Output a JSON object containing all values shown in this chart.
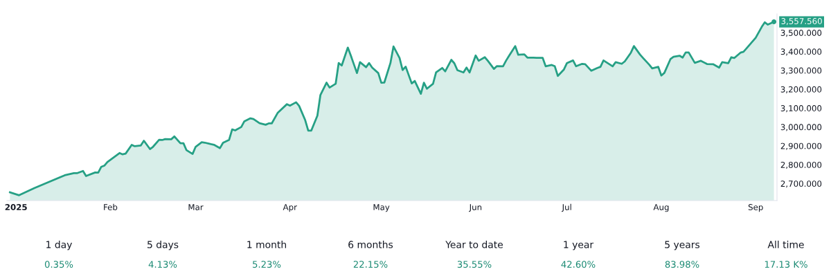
{
  "chart_data": [
    {
      "type": "area",
      "x": [
        "2024-12-30",
        "2025-01-02",
        "2025-01-07",
        "2025-01-17",
        "2025-01-20",
        "2025-01-21",
        "2025-01-23",
        "2025-01-24",
        "2025-01-27",
        "2025-01-28",
        "2025-01-29",
        "2025-01-30",
        "2025-01-31",
        "2025-02-04",
        "2025-02-05",
        "2025-02-06",
        "2025-02-08",
        "2025-02-09",
        "2025-02-11",
        "2025-02-12",
        "2025-02-14",
        "2025-02-15",
        "2025-02-17",
        "2025-02-18",
        "2025-02-19",
        "2025-02-21",
        "2025-02-22",
        "2025-02-24",
        "2025-02-25",
        "2025-02-26",
        "2025-02-28",
        "2025-03-01",
        "2025-03-03",
        "2025-03-04",
        "2025-03-06",
        "2025-03-07",
        "2025-03-09",
        "2025-03-10",
        "2025-03-12",
        "2025-03-13",
        "2025-03-14",
        "2025-03-16",
        "2025-03-17",
        "2025-03-19",
        "2025-03-20",
        "2025-03-22",
        "2025-03-24",
        "2025-03-25",
        "2025-03-26",
        "2025-03-28",
        "2025-03-31",
        "2025-04-01",
        "2025-04-03",
        "2025-04-04",
        "2025-04-06",
        "2025-04-07",
        "2025-04-08",
        "2025-04-10",
        "2025-04-11",
        "2025-04-13",
        "2025-04-14",
        "2025-04-16",
        "2025-04-17",
        "2025-04-18",
        "2025-04-20",
        "2025-04-21",
        "2025-04-23",
        "2025-04-24",
        "2025-04-26",
        "2025-04-27",
        "2025-04-28",
        "2025-04-30",
        "2025-05-01",
        "2025-05-02",
        "2025-05-04",
        "2025-05-05",
        "2025-05-07",
        "2025-05-08",
        "2025-05-09",
        "2025-05-11",
        "2025-05-12",
        "2025-05-14",
        "2025-05-15",
        "2025-05-16",
        "2025-05-18",
        "2025-05-19",
        "2025-05-21",
        "2025-05-22",
        "2025-05-24",
        "2025-05-25",
        "2025-05-26",
        "2025-05-28",
        "2025-05-29",
        "2025-05-30",
        "2025-06-01",
        "2025-06-02",
        "2025-06-04",
        "2025-06-05",
        "2025-06-07",
        "2025-06-08",
        "2025-06-10",
        "2025-06-11",
        "2025-06-12",
        "2025-06-14",
        "2025-06-15",
        "2025-06-17",
        "2025-06-18",
        "2025-06-20",
        "2025-06-21",
        "2025-06-23",
        "2025-06-24",
        "2025-06-26",
        "2025-06-27",
        "2025-06-28",
        "2025-06-30",
        "2025-07-01",
        "2025-07-03",
        "2025-07-04",
        "2025-07-06",
        "2025-07-07",
        "2025-07-09",
        "2025-07-11",
        "2025-07-12",
        "2025-07-13",
        "2025-07-16",
        "2025-07-17",
        "2025-07-19",
        "2025-07-20",
        "2025-07-22",
        "2025-07-23",
        "2025-07-25",
        "2025-07-26",
        "2025-07-28",
        "2025-07-29",
        "2025-07-31",
        "2025-08-01",
        "2025-08-02",
        "2025-08-04",
        "2025-08-05",
        "2025-08-07",
        "2025-08-08",
        "2025-08-09",
        "2025-08-10",
        "2025-08-12",
        "2025-08-14",
        "2025-08-16",
        "2025-08-18",
        "2025-08-20",
        "2025-08-21",
        "2025-08-23",
        "2025-08-24",
        "2025-08-25",
        "2025-08-27",
        "2025-08-28",
        "2025-08-29",
        "2025-09-01",
        "2025-09-03",
        "2025-09-04",
        "2025-09-05",
        "2025-09-07"
      ],
      "series": [
        {
          "color": "#26a085",
          "values": [
            2654,
            2638,
            2676,
            2744,
            2755,
            2755,
            2767,
            2740,
            2759,
            2758,
            2789,
            2795,
            2814,
            2862,
            2855,
            2859,
            2905,
            2898,
            2902,
            2927,
            2883,
            2895,
            2932,
            2931,
            2936,
            2935,
            2950,
            2914,
            2914,
            2877,
            2857,
            2895,
            2919,
            2917,
            2909,
            2906,
            2888,
            2916,
            2932,
            2987,
            2982,
            3000,
            3030,
            3046,
            3042,
            3020,
            3012,
            3019,
            3019,
            3076,
            3121,
            3113,
            3131,
            3112,
            3036,
            2981,
            2981,
            3060,
            3170,
            3235,
            3209,
            3229,
            3339,
            3326,
            3421,
            3378,
            3286,
            3344,
            3317,
            3339,
            3315,
            3286,
            3235,
            3236,
            3339,
            3427,
            3366,
            3302,
            3320,
            3231,
            3244,
            3176,
            3235,
            3203,
            3229,
            3290,
            3313,
            3295,
            3356,
            3338,
            3301,
            3289,
            3315,
            3289,
            3379,
            3351,
            3370,
            3351,
            3308,
            3323,
            3322,
            3352,
            3378,
            3429,
            3383,
            3385,
            3368,
            3368,
            3367,
            3367,
            3322,
            3329,
            3322,
            3271,
            3305,
            3339,
            3353,
            3322,
            3335,
            3333,
            3298,
            3313,
            3319,
            3353,
            3322,
            3344,
            3335,
            3348,
            3394,
            3429,
            3384,
            3366,
            3331,
            3311,
            3319,
            3273,
            3287,
            3360,
            3372,
            3378,
            3368,
            3395,
            3395,
            3340,
            3351,
            3334,
            3333,
            3315,
            3344,
            3338,
            3370,
            3366,
            3394,
            3399,
            3417,
            3473,
            3531,
            3555,
            3543,
            3557.56
          ]
        }
      ],
      "xticks": [
        {
          "value": "2025-01-01",
          "label": "2025"
        },
        {
          "value": "2025-02-01",
          "label": "Feb"
        },
        {
          "value": "2025-03-01",
          "label": "Mar"
        },
        {
          "value": "2025-04-01",
          "label": "Apr"
        },
        {
          "value": "2025-05-01",
          "label": "May"
        },
        {
          "value": "2025-06-01",
          "label": "Jun"
        },
        {
          "value": "2025-07-01",
          "label": "Jul"
        },
        {
          "value": "2025-08-01",
          "label": "Aug"
        },
        {
          "value": "2025-09-01",
          "label": "Sep"
        }
      ],
      "xlim": [
        "2024-12-29",
        "2025-09-08"
      ],
      "ylim": [
        2610,
        3600
      ],
      "yticks": [
        {
          "value": 2700,
          "label": "2,700.000"
        },
        {
          "value": 2800,
          "label": "2,800.000"
        },
        {
          "value": 2900,
          "label": "2,900.000"
        },
        {
          "value": 3000,
          "label": "3,000.000"
        },
        {
          "value": 3100,
          "label": "3,100.000"
        },
        {
          "value": 3200,
          "label": "3,200.000"
        },
        {
          "value": 3300,
          "label": "3,300.000"
        },
        {
          "value": 3400,
          "label": "3,400.000"
        },
        {
          "value": 3500,
          "label": "3,500.000"
        }
      ],
      "annotations": [
        {
          "text": "3,557.560",
          "x": "2025-09-07",
          "y": 3557.56
        }
      ],
      "grid": false,
      "legend": false
    },
    {
      "type": "other",
      "annotations": [
        "1 day",
        "0.35%",
        "5 days",
        "4.13%",
        "1 month",
        "5.23%",
        "6 months",
        "22.15%",
        "Year to date",
        "35.55%",
        "1 year",
        "42.60%",
        "5 years",
        "83.98%",
        "All time",
        "17.13 K%"
      ]
    }
  ]
}
